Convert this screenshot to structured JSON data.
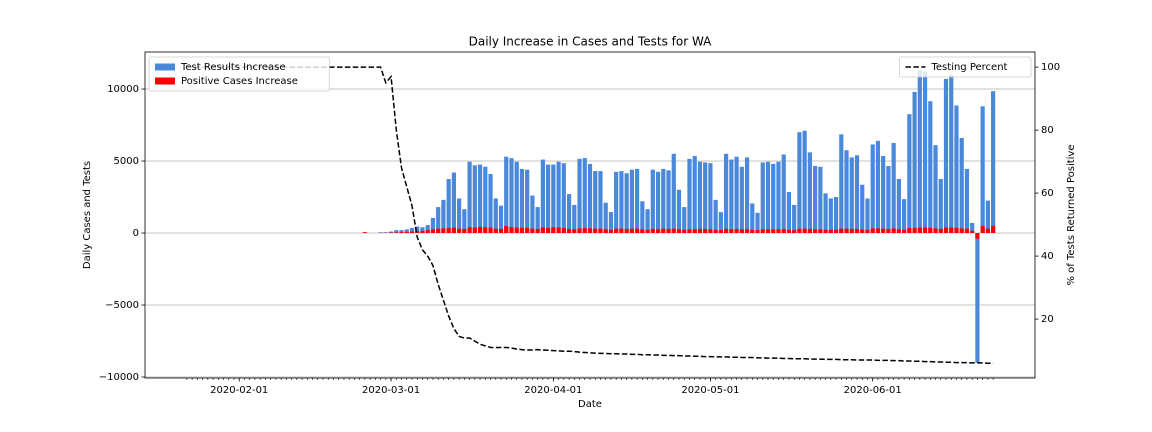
{
  "chart_data": {
    "type": "bar",
    "title": "Daily Increase in Cases and Tests for WA",
    "xlabel": "Date",
    "ylabel": "Daily Cases and Tests",
    "y2label": "% of Tests Returned Positive",
    "xlim": [
      "2020-01-14",
      "2020-07-02"
    ],
    "xticks": [
      "2020-02-01",
      "2020-03-01",
      "2020-04-01",
      "2020-05-01",
      "2020-06-01"
    ],
    "ylim": [
      -10070,
      12570
    ],
    "yticks": [
      {
        "value": -10000,
        "label": "−10000"
      },
      {
        "value": -5000,
        "label": "−5000"
      },
      0,
      5000,
      10000
    ],
    "y2lim": [
      1.3,
      104.8
    ],
    "y2ticks": [
      20,
      40,
      60,
      80,
      100
    ],
    "grid": true,
    "legend": "upper left",
    "legend_y2": "upper right",
    "x": [
      "2020-01-22",
      "2020-01-23",
      "2020-01-24",
      "2020-01-25",
      "2020-01-26",
      "2020-01-27",
      "2020-01-28",
      "2020-01-29",
      "2020-01-30",
      "2020-01-31",
      "2020-02-01",
      "2020-02-02",
      "2020-02-03",
      "2020-02-04",
      "2020-02-05",
      "2020-02-06",
      "2020-02-07",
      "2020-02-08",
      "2020-02-09",
      "2020-02-10",
      "2020-02-11",
      "2020-02-12",
      "2020-02-13",
      "2020-02-14",
      "2020-02-15",
      "2020-02-16",
      "2020-02-17",
      "2020-02-18",
      "2020-02-19",
      "2020-02-20",
      "2020-02-21",
      "2020-02-22",
      "2020-02-23",
      "2020-02-24",
      "2020-02-25",
      "2020-02-26",
      "2020-02-27",
      "2020-02-28",
      "2020-02-29",
      "2020-03-01",
      "2020-03-02",
      "2020-03-03",
      "2020-03-04",
      "2020-03-05",
      "2020-03-06",
      "2020-03-07",
      "2020-03-08",
      "2020-03-09",
      "2020-03-10",
      "2020-03-11",
      "2020-03-12",
      "2020-03-13",
      "2020-03-14",
      "2020-03-15",
      "2020-03-16",
      "2020-03-17",
      "2020-03-18",
      "2020-03-19",
      "2020-03-20",
      "2020-03-21",
      "2020-03-22",
      "2020-03-23",
      "2020-03-24",
      "2020-03-25",
      "2020-03-26",
      "2020-03-27",
      "2020-03-28",
      "2020-03-29",
      "2020-03-30",
      "2020-03-31",
      "2020-04-01",
      "2020-04-02",
      "2020-04-03",
      "2020-04-04",
      "2020-04-05",
      "2020-04-06",
      "2020-04-07",
      "2020-04-08",
      "2020-04-09",
      "2020-04-10",
      "2020-04-11",
      "2020-04-12",
      "2020-04-13",
      "2020-04-14",
      "2020-04-15",
      "2020-04-16",
      "2020-04-17",
      "2020-04-18",
      "2020-04-19",
      "2020-04-20",
      "2020-04-21",
      "2020-04-22",
      "2020-04-23",
      "2020-04-24",
      "2020-04-25",
      "2020-04-26",
      "2020-04-27",
      "2020-04-28",
      "2020-04-29",
      "2020-04-30",
      "2020-05-01",
      "2020-05-02",
      "2020-05-03",
      "2020-05-04",
      "2020-05-05",
      "2020-05-06",
      "2020-05-07",
      "2020-05-08",
      "2020-05-09",
      "2020-05-10",
      "2020-05-11",
      "2020-05-12",
      "2020-05-13",
      "2020-05-14",
      "2020-05-15",
      "2020-05-16",
      "2020-05-17",
      "2020-05-18",
      "2020-05-19",
      "2020-05-20",
      "2020-05-21",
      "2020-05-22",
      "2020-05-23",
      "2020-05-24",
      "2020-05-25",
      "2020-05-26",
      "2020-05-27",
      "2020-05-28",
      "2020-05-29",
      "2020-05-30",
      "2020-05-31",
      "2020-06-01",
      "2020-06-02",
      "2020-06-03",
      "2020-06-04",
      "2020-06-05",
      "2020-06-06",
      "2020-06-07",
      "2020-06-08",
      "2020-06-09",
      "2020-06-10",
      "2020-06-11",
      "2020-06-12",
      "2020-06-13",
      "2020-06-14",
      "2020-06-15",
      "2020-06-16",
      "2020-06-17",
      "2020-06-18",
      "2020-06-19",
      "2020-06-20",
      "2020-06-21",
      "2020-06-22",
      "2020-06-23",
      "2020-06-24"
    ],
    "series": [
      {
        "name": "Test Results Increase",
        "type": "bar",
        "color": "#4a88dc",
        "values": [
          0,
          0,
          0,
          0,
          0,
          0,
          0,
          0,
          0,
          0,
          0,
          0,
          0,
          0,
          0,
          0,
          0,
          0,
          0,
          0,
          0,
          0,
          0,
          0,
          0,
          0,
          0,
          0,
          0,
          0,
          0,
          0,
          0,
          0,
          0,
          0,
          0,
          50,
          50,
          100,
          200,
          200,
          250,
          350,
          450,
          400,
          550,
          1050,
          1800,
          2300,
          3750,
          4200,
          2400,
          1650,
          4950,
          4700,
          4750,
          4600,
          4100,
          2400,
          1900,
          5300,
          5200,
          4950,
          4450,
          4400,
          2600,
          1800,
          5100,
          4750,
          4750,
          4950,
          4850,
          2700,
          1950,
          5150,
          5200,
          4800,
          4300,
          4300,
          2100,
          1450,
          4250,
          4300,
          4150,
          4400,
          4450,
          2200,
          1650,
          4400,
          4250,
          4450,
          4350,
          5500,
          3000,
          1800,
          5150,
          5350,
          4950,
          4900,
          4850,
          2300,
          1450,
          5500,
          5100,
          5300,
          4600,
          5250,
          2050,
          1400,
          4900,
          4950,
          4800,
          4950,
          5450,
          2850,
          1950,
          7000,
          7100,
          5600,
          4650,
          4600,
          2750,
          2400,
          2500,
          6850,
          5750,
          5250,
          5400,
          3350,
          2400,
          6150,
          6400,
          5350,
          4650,
          6250,
          3750,
          2350,
          8250,
          9800,
          11300,
          11200,
          9150,
          6100,
          3750,
          10700,
          11000,
          8850,
          6600,
          4450,
          700,
          -9000,
          8800,
          2250,
          9850
        ]
      },
      {
        "name": "Positive Cases Increase",
        "type": "bar",
        "color": "#ff0000",
        "values": [
          0,
          0,
          0,
          0,
          0,
          0,
          0,
          0,
          0,
          0,
          0,
          0,
          0,
          0,
          0,
          0,
          0,
          0,
          0,
          0,
          0,
          0,
          0,
          0,
          0,
          0,
          0,
          0,
          0,
          0,
          0,
          0,
          0,
          0,
          60,
          0,
          0,
          10,
          20,
          30,
          50,
          60,
          80,
          100,
          120,
          150,
          200,
          250,
          300,
          320,
          350,
          380,
          300,
          280,
          400,
          380,
          420,
          400,
          380,
          300,
          280,
          480,
          400,
          380,
          350,
          360,
          300,
          280,
          380,
          360,
          400,
          380,
          350,
          280,
          250,
          320,
          340,
          320,
          300,
          300,
          260,
          220,
          300,
          300,
          280,
          300,
          300,
          250,
          220,
          280,
          260,
          300,
          280,
          300,
          260,
          220,
          260,
          260,
          280,
          280,
          260,
          220,
          200,
          280,
          260,
          280,
          260,
          260,
          220,
          200,
          260,
          260,
          250,
          260,
          280,
          220,
          200,
          300,
          300,
          280,
          260,
          260,
          220,
          220,
          220,
          300,
          300,
          280,
          280,
          240,
          220,
          320,
          320,
          300,
          280,
          320,
          260,
          220,
          340,
          360,
          380,
          380,
          360,
          320,
          280,
          380,
          380,
          360,
          320,
          300,
          150,
          -400,
          480,
          300,
          500
        ]
      },
      {
        "name": "Testing Percent",
        "type": "line",
        "axis": "y2",
        "color": "#000000",
        "dashed": true,
        "values": [
          100,
          100,
          100,
          100,
          100,
          100,
          100,
          100,
          100,
          100,
          100,
          100,
          100,
          100,
          100,
          100,
          100,
          100,
          100,
          100,
          100,
          100,
          100,
          100,
          100,
          100,
          100,
          100,
          100,
          100,
          100,
          100,
          100,
          100,
          100,
          100,
          100,
          100,
          95,
          97,
          80,
          68,
          62,
          56,
          46,
          42,
          40,
          37,
          31,
          26,
          21,
          17,
          14.5,
          14,
          14,
          13,
          12,
          11.5,
          11,
          11,
          11,
          11,
          10.8,
          10.5,
          10.3,
          10.2,
          10.2,
          10.3,
          10.2,
          10.1,
          10,
          9.9,
          9.8,
          9.8,
          9.7,
          9.5,
          9.4,
          9.3,
          9.2,
          9.1,
          9.1,
          9,
          9,
          8.9,
          8.9,
          8.8,
          8.8,
          8.7,
          8.7,
          8.6,
          8.6,
          8.5,
          8.5,
          8.4,
          8.4,
          8.3,
          8.3,
          8.2,
          8.2,
          8.1,
          8.1,
          8,
          8,
          8,
          7.9,
          7.9,
          7.8,
          7.8,
          7.8,
          7.7,
          7.7,
          7.6,
          7.6,
          7.6,
          7.5,
          7.5,
          7.4,
          7.4,
          7.4,
          7.3,
          7.3,
          7.3,
          7.2,
          7.2,
          7.2,
          7.1,
          7.1,
          7.1,
          7,
          7,
          7,
          7,
          6.9,
          6.9,
          6.9,
          6.8,
          6.8,
          6.7,
          6.7,
          6.6,
          6.6,
          6.5,
          6.5,
          6.4,
          6.4,
          6.3,
          6.3,
          6.2,
          6.2,
          6.2,
          6.1,
          6.1,
          6.1,
          6,
          6
        ]
      }
    ]
  }
}
